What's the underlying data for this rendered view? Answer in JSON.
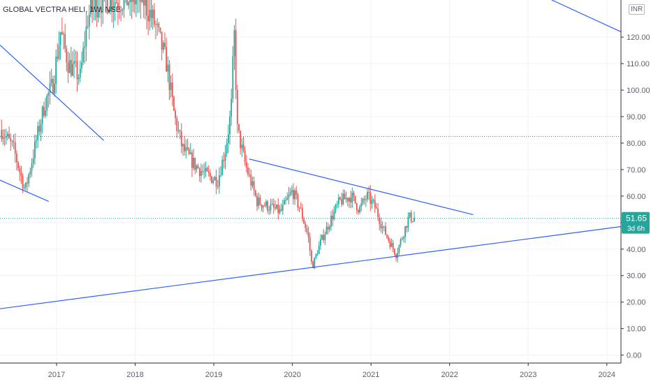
{
  "header": {
    "title": "GLOBAL VECTRA HELI, 1W, NSE",
    "currency": "INR"
  },
  "price_label": {
    "value": "51.65",
    "countdown": "3d 6h"
  },
  "chart_data": {
    "type": "candlestick",
    "title": "GLOBAL VECTRA HELI, 1W, NSE",
    "x_ticks": [
      "2017",
      "2018",
      "2019",
      "2020",
      "2021",
      "2022",
      "2023",
      "2024"
    ],
    "y_ticks": [
      "0.00",
      "10.00",
      "20.00",
      "30.00",
      "40.00",
      "50.00",
      "60.00",
      "70.00",
      "80.00",
      "90.00",
      "100.00",
      "110.00",
      "120.00"
    ],
    "ylim": [
      -3,
      134
    ],
    "xlim": [
      2016.28,
      2024.18
    ],
    "grid": true,
    "last_price": 51.65,
    "horizontal_level": 82.5,
    "colors": {
      "up": "#26a69a",
      "down": "#ef5350",
      "trendline": "#2962ff",
      "level": "#787b86"
    },
    "price_path": [
      [
        2016.3,
        85
      ],
      [
        2016.45,
        78
      ],
      [
        2016.6,
        62
      ],
      [
        2016.75,
        82
      ],
      [
        2016.85,
        95
      ],
      [
        2016.95,
        102
      ],
      [
        2017.05,
        122
      ],
      [
        2017.15,
        110
      ],
      [
        2017.3,
        105
      ],
      [
        2017.4,
        128
      ],
      [
        2017.55,
        134
      ],
      [
        2017.7,
        134
      ],
      [
        2017.9,
        134
      ],
      [
        2018.1,
        134
      ],
      [
        2018.25,
        125
      ],
      [
        2018.4,
        110
      ],
      [
        2018.5,
        90
      ],
      [
        2018.6,
        78
      ],
      [
        2018.75,
        72
      ],
      [
        2018.9,
        68
      ],
      [
        2019.05,
        66
      ],
      [
        2019.15,
        78
      ],
      [
        2019.22,
        92
      ],
      [
        2019.26,
        122
      ],
      [
        2019.3,
        85
      ],
      [
        2019.4,
        72
      ],
      [
        2019.55,
        58
      ],
      [
        2019.7,
        56
      ],
      [
        2019.85,
        54
      ],
      [
        2020.0,
        62
      ],
      [
        2020.1,
        55
      ],
      [
        2020.2,
        45
      ],
      [
        2020.25,
        33
      ],
      [
        2020.35,
        42
      ],
      [
        2020.5,
        52
      ],
      [
        2020.6,
        58
      ],
      [
        2020.75,
        60
      ],
      [
        2020.85,
        55
      ],
      [
        2020.95,
        60
      ],
      [
        2021.05,
        56
      ],
      [
        2021.15,
        48
      ],
      [
        2021.25,
        42
      ],
      [
        2021.32,
        38
      ],
      [
        2021.4,
        45
      ],
      [
        2021.48,
        52
      ],
      [
        2021.55,
        51.65
      ]
    ],
    "trendlines": [
      {
        "from": [
          2016.28,
          117
        ],
        "to": [
          2017.6,
          81
        ]
      },
      {
        "from": [
          2016.28,
          66
        ],
        "to": [
          2016.9,
          58
        ]
      },
      {
        "from": [
          2019.45,
          74
        ],
        "to": [
          2022.3,
          53
        ]
      },
      {
        "from": [
          2016.28,
          17.5
        ],
        "to": [
          2024.18,
          48.5
        ]
      },
      {
        "from": [
          2023.3,
          134
        ],
        "to": [
          2024.18,
          122
        ]
      }
    ]
  }
}
